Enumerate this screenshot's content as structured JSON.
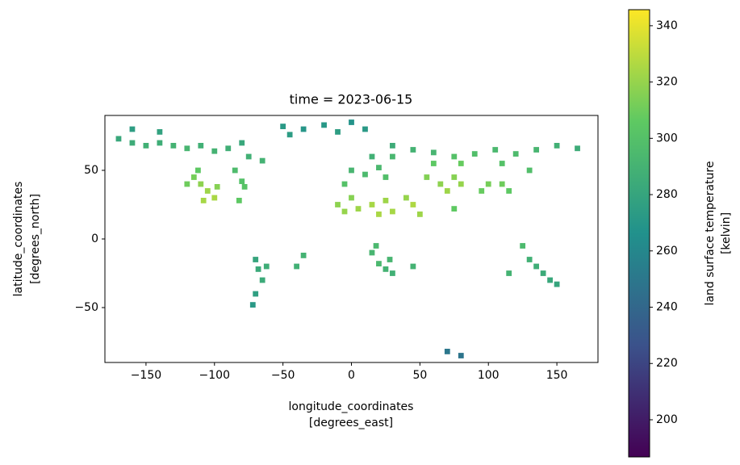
{
  "chart_data": {
    "type": "raster",
    "title": "time = 2023-06-15",
    "xlabel": [
      "longitude_coordinates",
      "[degrees_east]"
    ],
    "ylabel": [
      "latitude_coordinates",
      "[degrees_north]"
    ],
    "colorbar_label": [
      "land surface temperature",
      "[kelvin]"
    ],
    "colormap": "viridis",
    "xlim": [
      -180,
      180
    ],
    "ylim": [
      -90,
      90
    ],
    "clim": [
      186.8,
      345.7
    ],
    "xticks": [
      {
        "value": -150,
        "label": "−150"
      },
      {
        "value": -100,
        "label": "−100"
      },
      {
        "value": -50,
        "label": "−50"
      },
      0,
      50,
      100,
      150
    ],
    "yticks": [
      {
        "value": -50,
        "label": "−50"
      },
      0,
      50
    ],
    "cticks": [
      200,
      220,
      240,
      260,
      280,
      300,
      320,
      340
    ],
    "x": [
      -170,
      -160,
      -150,
      -140,
      -130,
      -120,
      -110,
      -100,
      -90,
      -80,
      -160,
      -140,
      -75,
      -65,
      -50,
      -35,
      -20,
      -10,
      0,
      10,
      -45,
      -115,
      -110,
      -105,
      -100,
      -108,
      -98,
      -112,
      -120,
      -80,
      -85,
      -78,
      -82,
      -70,
      -68,
      -65,
      -70,
      -72,
      -62,
      -35,
      -40,
      -10,
      -5,
      0,
      5,
      15,
      20,
      25,
      30,
      45,
      50,
      40,
      -5,
      0,
      10,
      20,
      25,
      30,
      15,
      30,
      45,
      60,
      75,
      90,
      105,
      120,
      135,
      150,
      165,
      60,
      80,
      110,
      130,
      55,
      65,
      75,
      80,
      70,
      100,
      110,
      115,
      95,
      15,
      20,
      25,
      30,
      28,
      18,
      45,
      75,
      115,
      130,
      135,
      140,
      145,
      150,
      125,
      70,
      80
    ],
    "y": [
      73,
      70,
      68,
      70,
      68,
      66,
      68,
      64,
      66,
      70,
      80,
      78,
      60,
      57,
      82,
      80,
      83,
      78,
      85,
      80,
      76,
      45,
      40,
      35,
      30,
      28,
      38,
      50,
      40,
      42,
      50,
      38,
      28,
      -15,
      -22,
      -30,
      -40,
      -48,
      -20,
      -12,
      -20,
      25,
      20,
      30,
      22,
      25,
      18,
      28,
      20,
      25,
      18,
      30,
      40,
      50,
      47,
      52,
      45,
      60,
      60,
      68,
      65,
      63,
      60,
      62,
      65,
      62,
      65,
      68,
      66,
      55,
      55,
      55,
      50,
      45,
      40,
      45,
      40,
      35,
      40,
      40,
      35,
      35,
      -10,
      -18,
      -22,
      -25,
      -15,
      -5,
      -20,
      22,
      -25,
      -15,
      -20,
      -25,
      -30,
      -33,
      -5,
      -82,
      -85
    ],
    "values": [
      282,
      285,
      288,
      286,
      290,
      292,
      288,
      290,
      287,
      282,
      275,
      278,
      288,
      290,
      272,
      270,
      271,
      275,
      268,
      272,
      274,
      312,
      318,
      322,
      325,
      324,
      316,
      305,
      310,
      300,
      296,
      302,
      305,
      280,
      283,
      284,
      276,
      272,
      286,
      290,
      288,
      318,
      320,
      316,
      322,
      324,
      325,
      322,
      324,
      326,
      322,
      320,
      300,
      292,
      295,
      294,
      298,
      293,
      288,
      285,
      290,
      292,
      300,
      298,
      294,
      296,
      292,
      288,
      285,
      305,
      308,
      300,
      298,
      315,
      318,
      316,
      320,
      322,
      312,
      310,
      305,
      308,
      292,
      294,
      290,
      288,
      292,
      294,
      290,
      306,
      290,
      288,
      286,
      284,
      282,
      280,
      295,
      250,
      248
    ]
  }
}
